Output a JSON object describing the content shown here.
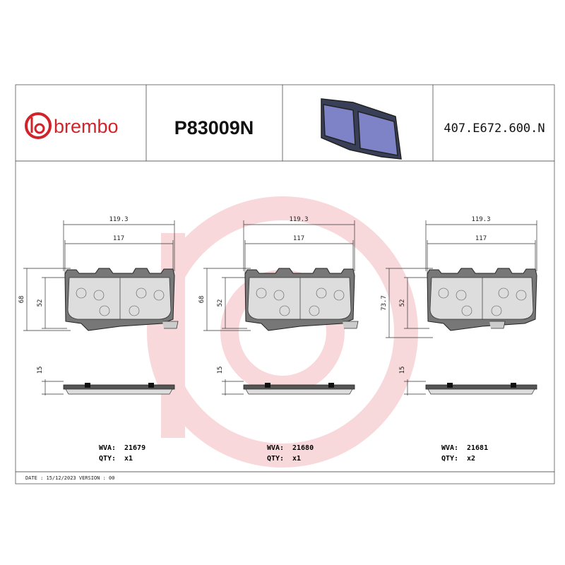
{
  "header": {
    "brand": "brembo",
    "part_number": "P83009N",
    "code": "407.E672.600.N"
  },
  "labels": {
    "wva": "WVA:",
    "qty": "QTY:"
  },
  "pads": [
    {
      "width_outer": "119.3",
      "width_inner": "117",
      "height_outer": "68",
      "height_inner": "52",
      "thickness": "15",
      "wva": "21679",
      "qty": "x1"
    },
    {
      "width_outer": "119.3",
      "width_inner": "117",
      "height_outer": "68",
      "height_inner": "52",
      "thickness": "15",
      "wva": "21680",
      "qty": "x1"
    },
    {
      "width_outer": "119.3",
      "width_inner": "117",
      "height_outer": "73.7",
      "height_inner": "52",
      "thickness": "15",
      "wva": "21681",
      "qty": "x2"
    }
  ],
  "footer": {
    "date_version": "DATE : 15/12/2023 VERSION : 00"
  }
}
